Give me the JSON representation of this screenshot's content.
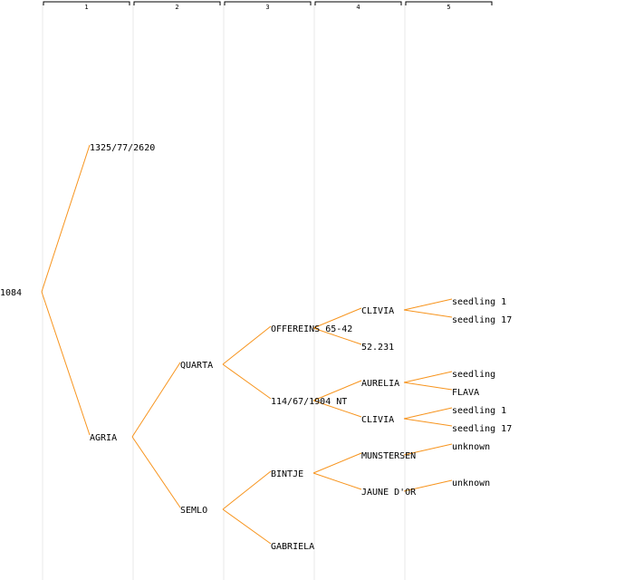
{
  "diagram": {
    "type": "pedigree-tree",
    "line_color": "#f7941d",
    "divider_color": "#e8e8e8",
    "generations": [
      "1",
      "2",
      "3",
      "4",
      "5"
    ],
    "root": {
      "label": "1084",
      "children": [
        {
          "label": "1325/77/2620",
          "children": []
        },
        {
          "label": "AGRIA",
          "children": [
            {
              "label": "QUARTA",
              "children": [
                {
                  "label": "OFFEREINS 65-42",
                  "children": [
                    {
                      "label": "CLIVIA",
                      "children": [
                        {
                          "label": "seedling 1"
                        },
                        {
                          "label": "seedling 17"
                        }
                      ]
                    },
                    {
                      "label": "52.231",
                      "children": []
                    }
                  ]
                },
                {
                  "label": "114/67/1904 NT",
                  "children": [
                    {
                      "label": "AURELIA",
                      "children": [
                        {
                          "label": "seedling"
                        },
                        {
                          "label": "FLAVA"
                        }
                      ]
                    },
                    {
                      "label": "CLIVIA",
                      "children": [
                        {
                          "label": "seedling 1"
                        },
                        {
                          "label": "seedling 17"
                        }
                      ]
                    }
                  ]
                }
              ]
            },
            {
              "label": "SEMLO",
              "children": [
                {
                  "label": "BINTJE",
                  "children": [
                    {
                      "label": "MUNSTERSEN",
                      "children": [
                        {
                          "label": "unknown"
                        }
                      ]
                    },
                    {
                      "label": "JAUNE D'OR",
                      "children": [
                        {
                          "label": "unknown"
                        }
                      ]
                    }
                  ]
                },
                {
                  "label": "GABRIELA",
                  "children": []
                }
              ]
            }
          ]
        }
      ]
    }
  }
}
